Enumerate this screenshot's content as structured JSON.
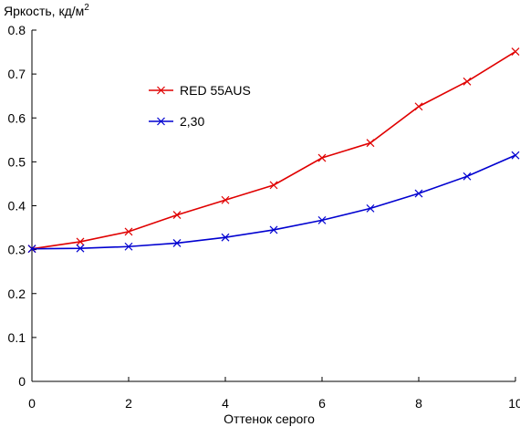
{
  "chart_data": {
    "type": "line",
    "ylabel": "Яркость, кд/м",
    "ylabel_sup": "2",
    "xlabel": "Оттенок серого",
    "xlim": [
      0,
      10
    ],
    "ylim": [
      0,
      0.8
    ],
    "x_ticks": [
      0,
      2,
      4,
      6,
      8,
      10
    ],
    "x_tick_labels": [
      "0",
      "2",
      "4",
      "6",
      "8",
      "10"
    ],
    "y_ticks": [
      0,
      0.1,
      0.2,
      0.3,
      0.4,
      0.5,
      0.6,
      0.7,
      0.8
    ],
    "y_tick_labels": [
      "0",
      "0.1",
      "0.2",
      "0.3",
      "0.4",
      "0.5",
      "0.6",
      "0.7",
      "0.8"
    ],
    "grid": false,
    "legend": "upper-left-inside",
    "x": [
      0,
      1,
      2,
      3,
      4,
      5,
      6,
      7,
      8,
      9,
      10
    ],
    "series": [
      {
        "name": "RED 55AUS",
        "color": "#e00000",
        "marker": "x",
        "values": [
          0.302,
          0.318,
          0.341,
          0.379,
          0.413,
          0.447,
          0.509,
          0.543,
          0.626,
          0.683,
          0.751
        ]
      },
      {
        "name": "2,30",
        "color": "#0000d0",
        "marker": "x",
        "values": [
          0.302,
          0.303,
          0.307,
          0.315,
          0.328,
          0.345,
          0.367,
          0.394,
          0.428,
          0.467,
          0.515
        ]
      }
    ]
  }
}
